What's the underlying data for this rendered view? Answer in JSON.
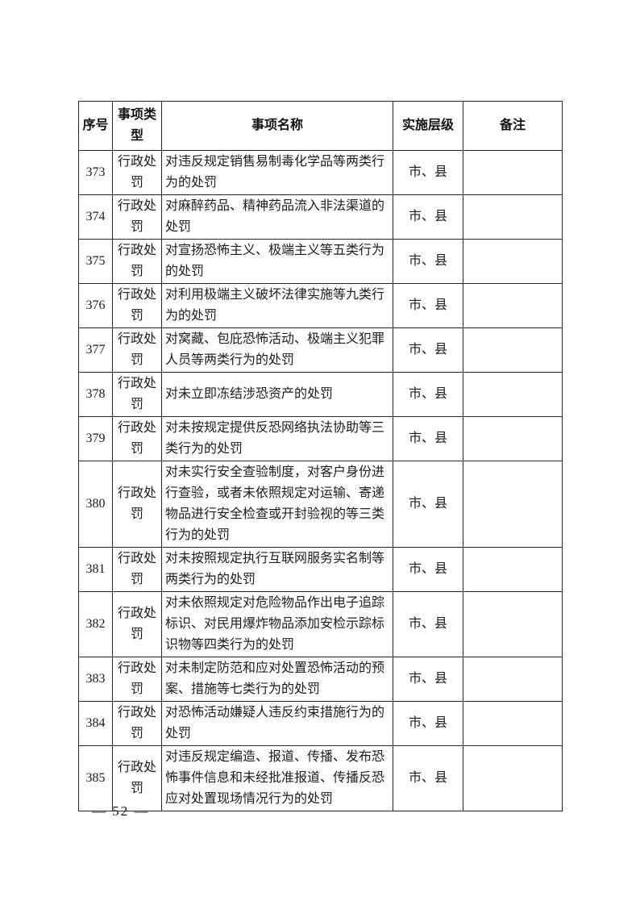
{
  "document": {
    "footer_page_number": "— 52 —"
  },
  "table": {
    "headers": [
      "序号",
      "事项类型",
      "事项名称",
      "实施层级",
      "备注"
    ],
    "rows": [
      {
        "no": "373",
        "type": "行政处罚",
        "name": "对违反规定销售易制毒化学品等两类行为的处罚",
        "level": "市、县",
        "note": ""
      },
      {
        "no": "374",
        "type": "行政处罚",
        "name": "对麻醉药品、精神药品流入非法渠道的处罚",
        "level": "市、县",
        "note": ""
      },
      {
        "no": "375",
        "type": "行政处罚",
        "name": "对宣扬恐怖主义、极端主义等五类行为的处罚",
        "level": "市、县",
        "note": ""
      },
      {
        "no": "376",
        "type": "行政处罚",
        "name": "对利用极端主义破坏法律实施等九类行为的处罚",
        "level": "市、县",
        "note": ""
      },
      {
        "no": "377",
        "type": "行政处罚",
        "name": "对窝藏、包庇恐怖活动、极端主义犯罪人员等两类行为的处罚",
        "level": "市、县",
        "note": ""
      },
      {
        "no": "378",
        "type": "行政处罚",
        "name": "对未立即冻结涉恐资产的处罚",
        "level": "市、县",
        "note": ""
      },
      {
        "no": "379",
        "type": "行政处罚",
        "name": "对未按规定提供反恐网络执法协助等三类行为的处罚",
        "level": "市、县",
        "note": ""
      },
      {
        "no": "380",
        "type": "行政处罚",
        "name": "对未实行安全查验制度，对客户身份进行查验，或者未依照规定对运输、寄递物品进行安全检查或开封验视的等三类行为的处罚",
        "level": "市、县",
        "note": ""
      },
      {
        "no": "381",
        "type": "行政处罚",
        "name": "对未按照规定执行互联网服务实名制等两类行为的处罚",
        "level": "市、县",
        "note": ""
      },
      {
        "no": "382",
        "type": "行政处罚",
        "name": "对未依照规定对危险物品作出电子追踪标识、对民用爆炸物品添加安检示踪标识物等四类行为的处罚",
        "level": "市、县",
        "note": ""
      },
      {
        "no": "383",
        "type": "行政处罚",
        "name": "对未制定防范和应对处置恐怖活动的预案、措施等七类行为的处罚",
        "level": "市、县",
        "note": ""
      },
      {
        "no": "384",
        "type": "行政处罚",
        "name": "对恐怖活动嫌疑人违反约束措施行为的处罚",
        "level": "市、县",
        "note": ""
      },
      {
        "no": "385",
        "type": "行政处罚",
        "name": "对违反规定编造、报道、传播、发布恐怖事件信息和未经批准报道、传播反恐应对处置现场情况行为的处罚",
        "level": "市、县",
        "note": ""
      }
    ]
  }
}
